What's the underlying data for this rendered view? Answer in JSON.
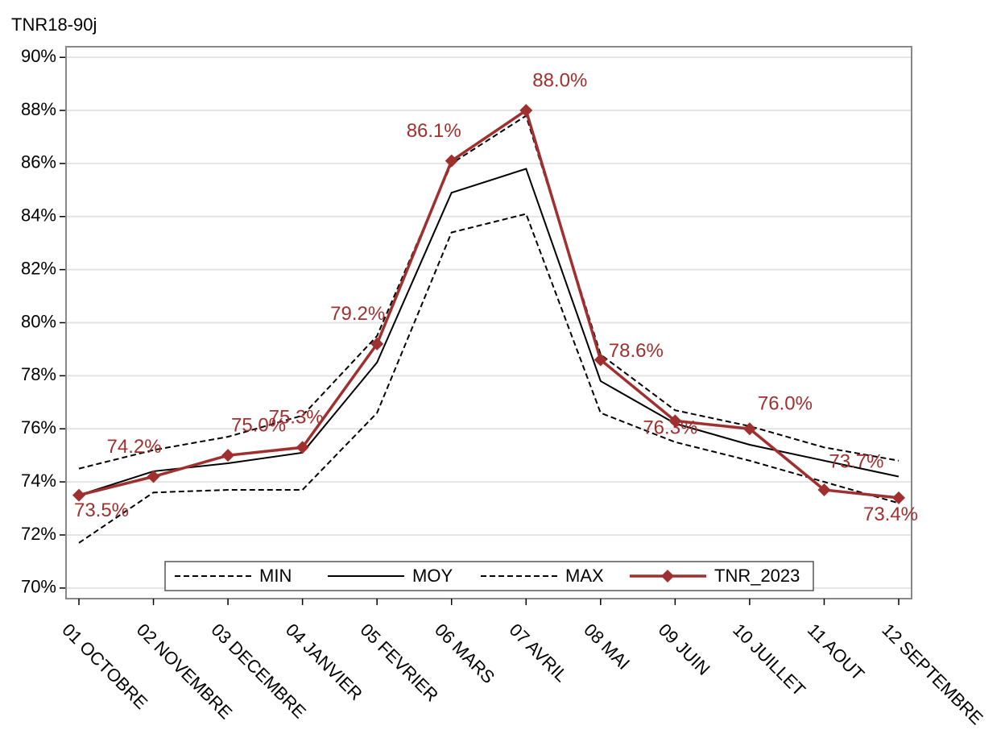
{
  "chart_data": {
    "type": "line",
    "title": "TNR18-90j",
    "categories": [
      "01 OCTOBRE",
      "02 NOVEMBRE",
      "03 DECEMBRE",
      "04 JANVIER",
      "05 FEVRIER",
      "06 MARS",
      "07 AVRIL",
      "08 MAI",
      "09 JUIN",
      "10 JUILLET",
      "11 AOUT",
      "12 SEPTEMBRE"
    ],
    "series": [
      {
        "name": "MIN",
        "color": "#000000",
        "dashed": true,
        "values": [
          71.7,
          73.6,
          73.7,
          73.7,
          76.6,
          83.4,
          84.1,
          76.6,
          75.5,
          74.8,
          74.0,
          73.2
        ]
      },
      {
        "name": "MOY",
        "color": "#000000",
        "dashed": false,
        "values": [
          73.5,
          74.4,
          74.7,
          75.1,
          78.5,
          84.9,
          85.8,
          77.8,
          76.2,
          75.4,
          74.8,
          74.2
        ]
      },
      {
        "name": "MAX",
        "color": "#000000",
        "dashed": true,
        "values": [
          74.5,
          75.2,
          75.7,
          76.5,
          79.5,
          86.0,
          87.8,
          78.8,
          76.7,
          76.1,
          75.3,
          74.8
        ]
      },
      {
        "name": "TNR_2023",
        "color": "#a0302f",
        "dashed": false,
        "marker": "diamond",
        "values": [
          73.5,
          74.2,
          75.0,
          75.3,
          79.2,
          86.1,
          88.0,
          78.6,
          76.3,
          76.0,
          73.7,
          73.4
        ],
        "value_labels": [
          "73.5%",
          "74.2%",
          "75.0%",
          "75.3%",
          "79.2%",
          "86.1%",
          "88.0%",
          "78.6%",
          "76.3%",
          "76.0%",
          "73.7%",
          "73.4%"
        ]
      }
    ],
    "ylim": [
      69.6,
      90.4
    ],
    "yticks": [
      {
        "value": 70,
        "label": "70%"
      },
      {
        "value": 72,
        "label": "72%"
      },
      {
        "value": 74,
        "label": "74%"
      },
      {
        "value": 76,
        "label": "76%"
      },
      {
        "value": 78,
        "label": "78%"
      },
      {
        "value": 80,
        "label": "80%"
      },
      {
        "value": 82,
        "label": "82%"
      },
      {
        "value": 84,
        "label": "84%"
      },
      {
        "value": 86,
        "label": "86%"
      },
      {
        "value": 88,
        "label": "88%"
      },
      {
        "value": 90,
        "label": "90%"
      }
    ],
    "grid": true,
    "legend": "bottom"
  }
}
